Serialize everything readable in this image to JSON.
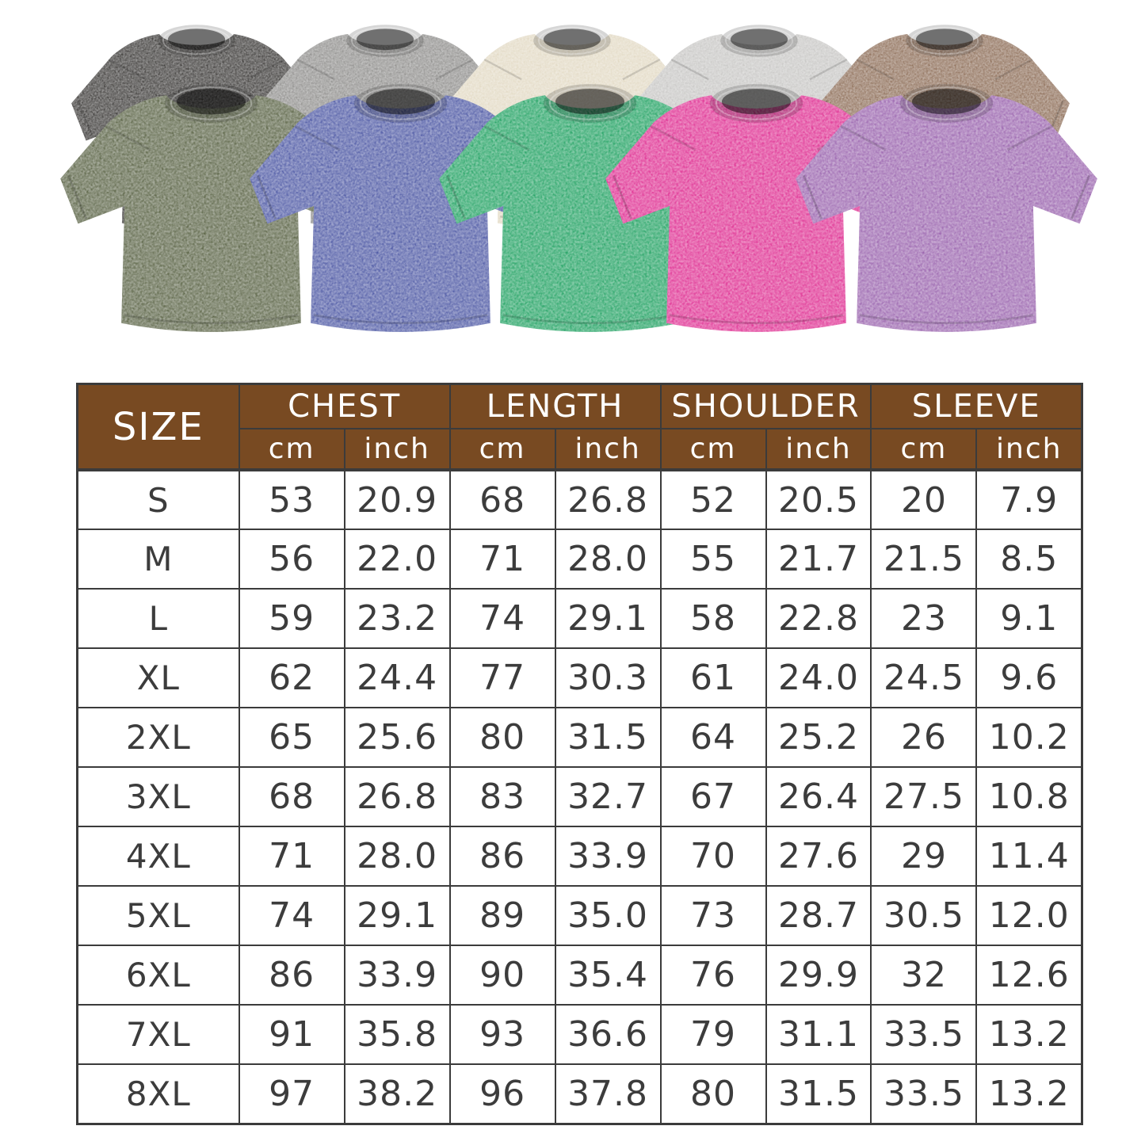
{
  "colors": {
    "background": "#ffffff",
    "table_border": "#3b3b3b",
    "header_bg": "#784a22",
    "header_text": "#ffffff",
    "cell_text": "#3c3c3c"
  },
  "shirts": {
    "back_row": [
      {
        "name": "black-washed",
        "color": "#3b3937"
      },
      {
        "name": "gray-washed",
        "color": "#8f8e8c"
      },
      {
        "name": "beige-washed",
        "color": "#e2d9c3"
      },
      {
        "name": "light-gray-washed",
        "color": "#c7c6c4"
      },
      {
        "name": "brown-washed",
        "color": "#8d6d57"
      }
    ],
    "front_row": [
      {
        "name": "army-green-washed",
        "color": "#5a6345"
      },
      {
        "name": "blue-washed",
        "color": "#4d58a4"
      },
      {
        "name": "green-washed",
        "color": "#22a263"
      },
      {
        "name": "rose-pink-washed",
        "color": "#df2f92"
      },
      {
        "name": "purple-washed",
        "color": "#9a64ae"
      }
    ]
  },
  "size_chart": {
    "header": {
      "size_label": "SIZE",
      "groups": [
        "CHEST",
        "LENGTH",
        "SHOULDER",
        "SLEEVE"
      ],
      "units": [
        "cm",
        "inch"
      ]
    },
    "rows": [
      {
        "size": "S",
        "values": [
          "53",
          "20.9",
          "68",
          "26.8",
          "52",
          "20.5",
          "20",
          "7.9"
        ]
      },
      {
        "size": "M",
        "values": [
          "56",
          "22.0",
          "71",
          "28.0",
          "55",
          "21.7",
          "21.5",
          "8.5"
        ]
      },
      {
        "size": "L",
        "values": [
          "59",
          "23.2",
          "74",
          "29.1",
          "58",
          "22.8",
          "23",
          "9.1"
        ]
      },
      {
        "size": "XL",
        "values": [
          "62",
          "24.4",
          "77",
          "30.3",
          "61",
          "24.0",
          "24.5",
          "9.6"
        ]
      },
      {
        "size": "2XL",
        "values": [
          "65",
          "25.6",
          "80",
          "31.5",
          "64",
          "25.2",
          "26",
          "10.2"
        ]
      },
      {
        "size": "3XL",
        "values": [
          "68",
          "26.8",
          "83",
          "32.7",
          "67",
          "26.4",
          "27.5",
          "10.8"
        ]
      },
      {
        "size": "4XL",
        "values": [
          "71",
          "28.0",
          "86",
          "33.9",
          "70",
          "27.6",
          "29",
          "11.4"
        ]
      },
      {
        "size": "5XL",
        "values": [
          "74",
          "29.1",
          "89",
          "35.0",
          "73",
          "28.7",
          "30.5",
          "12.0"
        ]
      },
      {
        "size": "6XL",
        "values": [
          "86",
          "33.9",
          "90",
          "35.4",
          "76",
          "29.9",
          "32",
          "12.6"
        ]
      },
      {
        "size": "7XL",
        "values": [
          "91",
          "35.8",
          "93",
          "36.6",
          "79",
          "31.1",
          "33.5",
          "13.2"
        ]
      },
      {
        "size": "8XL",
        "values": [
          "97",
          "38.2",
          "96",
          "37.8",
          "80",
          "31.5",
          "33.5",
          "13.2"
        ]
      }
    ]
  }
}
